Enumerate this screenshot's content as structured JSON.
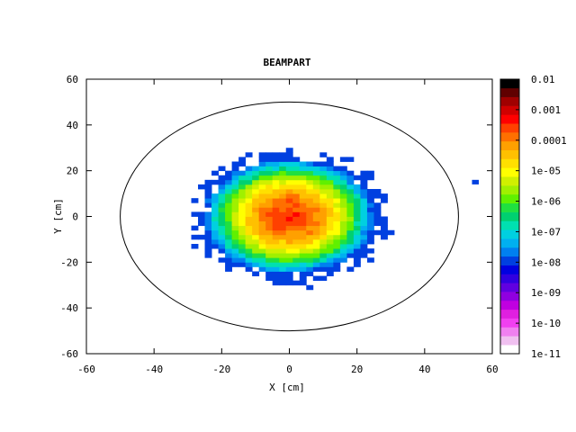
{
  "chart_data": {
    "type": "heatmap",
    "title": "BEAMPART",
    "xlabel": "X [cm]",
    "ylabel": "Y [cm]",
    "xlim": [
      -60,
      60
    ],
    "ylim": [
      -60,
      60
    ],
    "x_ticks": [
      "-60",
      "-40",
      "-20",
      "0",
      "20",
      "40",
      "60"
    ],
    "y_ticks": [
      "60",
      "40",
      "20",
      "0",
      "-20",
      "-40",
      "-60"
    ],
    "colorbar_ticks": [
      "0.01",
      "0.001",
      "0.0001",
      "1e-05",
      "1e-06",
      "1e-07",
      "1e-08",
      "1e-09",
      "1e-10",
      "1e-11"
    ],
    "colorbar_range": [
      1e-11,
      0.01
    ],
    "colormap": [
      "#ffffff",
      "#f0c0f0",
      "#f080f0",
      "#f040f0",
      "#e020e0",
      "#c000e0",
      "#9000e0",
      "#6000e0",
      "#3000e0",
      "#0000e0",
      "#0040e0",
      "#0080f0",
      "#00b0f0",
      "#00d0e0",
      "#00e0b0",
      "#00d070",
      "#20e040",
      "#60f000",
      "#a0f000",
      "#d0f000",
      "#ffff00",
      "#ffe000",
      "#ffc000",
      "#ffa000",
      "#ff7000",
      "#ff4000",
      "#ff0000",
      "#d00000",
      "#a00000",
      "#600000",
      "#000000"
    ],
    "peak_value": 0.0003,
    "peak_center": [
      0,
      0
    ],
    "beam_sigma_cm": 5.5,
    "beam_extent_cm": [
      -35,
      30,
      -32,
      30
    ],
    "ellipse": {
      "center": [
        0,
        0
      ],
      "rx": 50,
      "ry": 50
    },
    "stray_points": [
      [
        54,
        14
      ]
    ]
  }
}
